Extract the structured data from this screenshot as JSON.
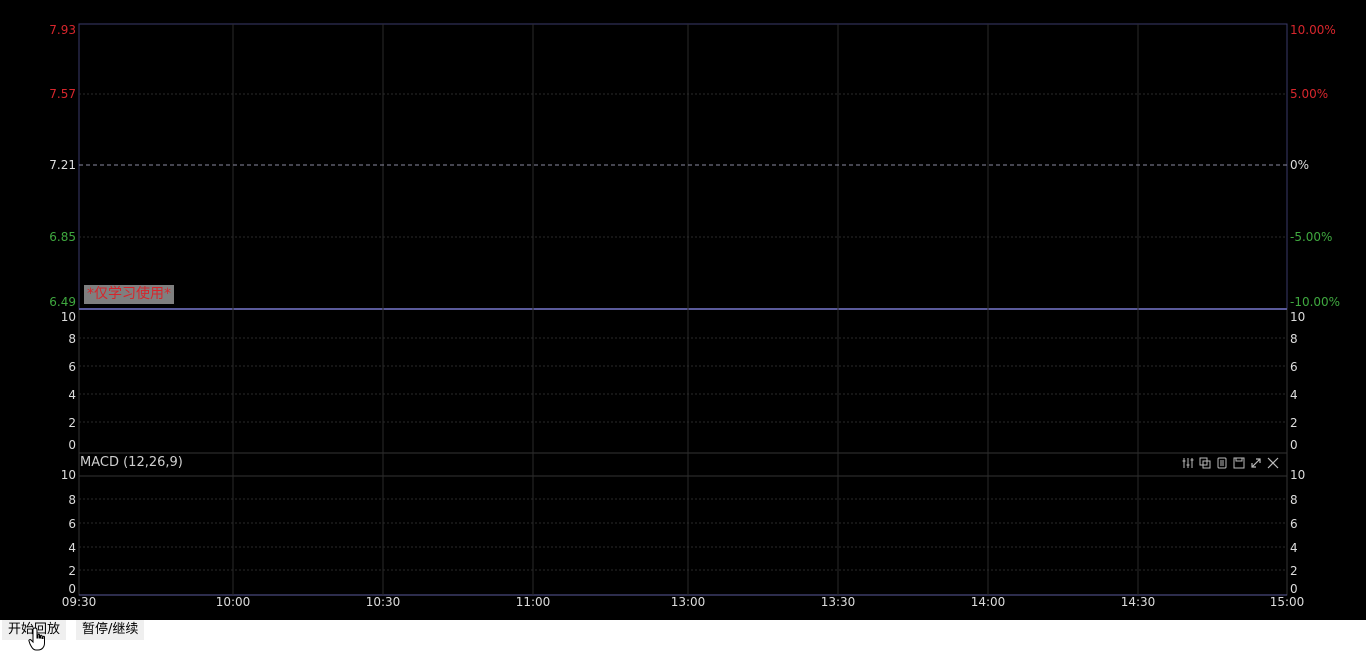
{
  "price_panel": {
    "left_ticks": [
      {
        "label": "7.93",
        "color": "#d7262c"
      },
      {
        "label": "7.57",
        "color": "#d7262c"
      },
      {
        "label": "7.21",
        "color": "#dddddd"
      },
      {
        "label": "6.85",
        "color": "#3fa83f"
      },
      {
        "label": "6.49",
        "color": "#3fa83f"
      }
    ],
    "right_ticks": [
      {
        "label": "10.00%",
        "color": "#d7262c"
      },
      {
        "label": "5.00%",
        "color": "#d7262c"
      },
      {
        "label": "0%",
        "color": "#dddddd"
      },
      {
        "label": "-5.00%",
        "color": "#3fa83f"
      },
      {
        "label": "-10.00%",
        "color": "#3fa83f"
      }
    ]
  },
  "volume_panel": {
    "ticks": [
      "10",
      "8",
      "6",
      "4",
      "2",
      "0"
    ]
  },
  "macd_panel": {
    "title": "MACD (12,26,9)",
    "ticks": [
      "10",
      "8",
      "6",
      "4",
      "2",
      "0"
    ],
    "tool_icons": [
      "settings-sliders-icon",
      "copy-icon",
      "duplicate-icon",
      "save-icon",
      "expand-icon",
      "close-icon"
    ]
  },
  "time_axis": [
    "09:30",
    "10:00",
    "10:30",
    "11:00",
    "13:00",
    "13:30",
    "14:00",
    "14:30",
    "15:00"
  ],
  "watermark": "*仅学习使用*",
  "controls": {
    "start_label": "开始回放",
    "pause_label": "暂停/继续"
  },
  "colors": {
    "background": "#000000",
    "grid": "#2a2a2a",
    "up": "#d7262c",
    "down": "#3fa83f",
    "neutral": "#dddddd",
    "border": "#3a3a6a"
  }
}
